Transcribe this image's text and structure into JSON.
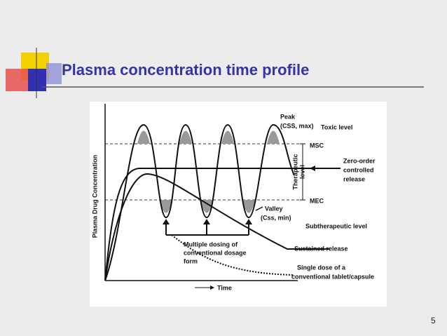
{
  "slide": {
    "title": "Plasma concentration time profile",
    "page_number": "5"
  },
  "figure": {
    "y_axis_label": "Plasma Drug Concentration",
    "x_axis_label": "Time",
    "peak": [
      "Peak",
      "(CSS, max)"
    ],
    "toxic_level": "Toxic level",
    "msc": "MSC",
    "therapeutic_level": [
      "Therapeutic",
      "level"
    ],
    "zero_order": [
      "Zero-order",
      "controlled",
      "release"
    ],
    "mec": "MEC",
    "valley": [
      "Valley",
      "(Css, min)"
    ],
    "subtherapeutic": "Subtherapeutic level",
    "multiple_dosing": [
      "Multiple dosing of",
      "conventional dosage",
      "form"
    ],
    "sustained_release": "Sustained release",
    "single_dose": [
      "Single dose of a",
      "conventional tablet/capsule"
    ]
  }
}
